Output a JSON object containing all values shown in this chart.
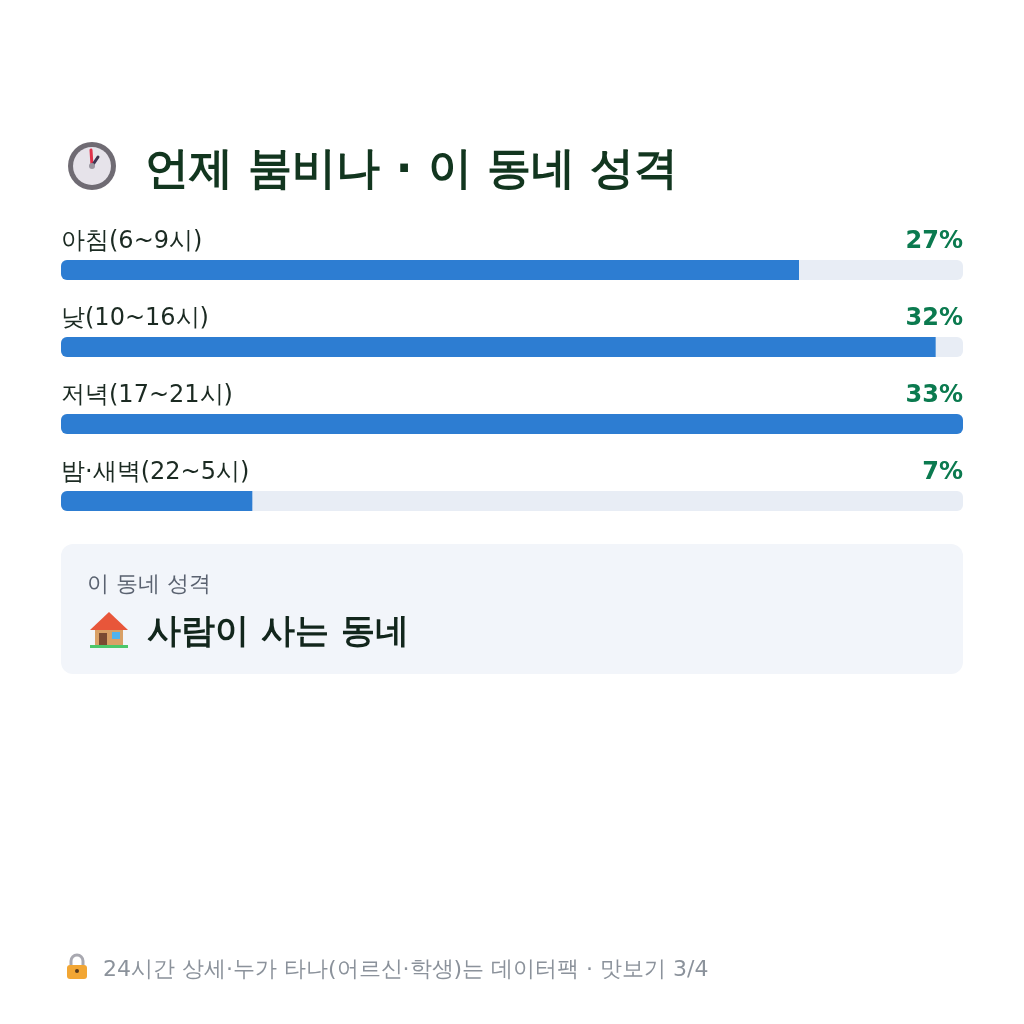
{
  "chart_data": {
    "type": "bar",
    "orientation": "horizontal",
    "title": "언제 붐비나 · 이 동네 성격",
    "categories": [
      "아침(6~9시)",
      "낮(10~16시)",
      "저녁(17~21시)",
      "밤·새벽(22~5시)"
    ],
    "values": [
      27,
      32,
      33,
      7
    ],
    "color": "#2d7dd2",
    "value_labels": [
      "27%",
      "32%",
      "33%",
      "7%"
    ],
    "xlim": [
      0,
      33
    ],
    "tick_labels": "y",
    "annotations": [
      "이 동네 성격",
      "사람이 사는 동네",
      "24시간 상세·누가 타나(어르신·학생)는 데이터팩 · 맛보기 3/4"
    ]
  }
}
